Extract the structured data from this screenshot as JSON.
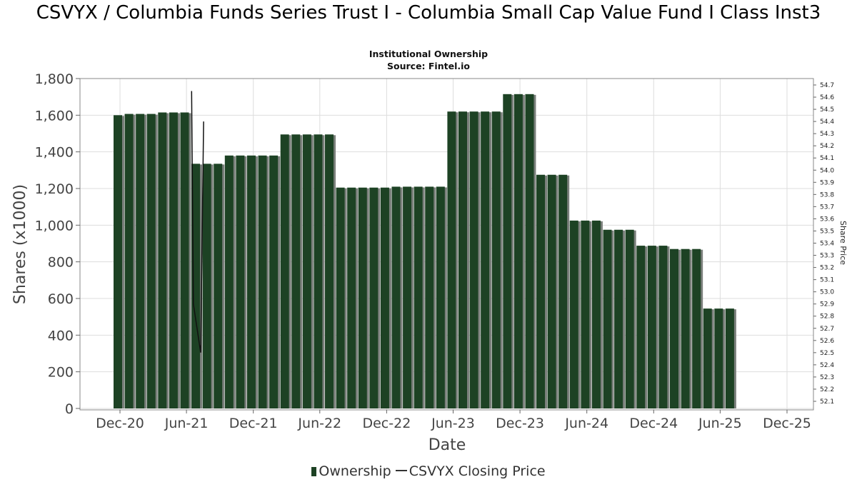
{
  "chart_data": {
    "type": "bar",
    "title": "CSVYX / Columbia Funds Series Trust I - Columbia Small Cap Value Fund I Class Inst3",
    "subtitle": "Institutional Ownership",
    "source": "Source: Fintel.io",
    "xlabel": "Date",
    "ylabel": "Shares (x1000)",
    "y2label": "Share Price",
    "ylim": [
      0,
      1800
    ],
    "y2lim": [
      52.05,
      54.75
    ],
    "yticks": [
      "0",
      "200",
      "400",
      "600",
      "800",
      "1,000",
      "1,200",
      "1,400",
      "1,600",
      "1,800"
    ],
    "y2ticks": [
      "52.1",
      "52.2",
      "52.3",
      "52.4",
      "52.5",
      "52.6",
      "52.7",
      "52.8",
      "52.9",
      "53.0",
      "53.1",
      "53.2",
      "53.3",
      "53.4",
      "53.5",
      "53.6",
      "53.7",
      "53.8",
      "53.9",
      "54.0",
      "54.1",
      "54.2",
      "54.3",
      "54.4",
      "54.5",
      "54.6",
      "54.7"
    ],
    "xticks": [
      "Dec-20",
      "Jun-21",
      "Dec-21",
      "Jun-22",
      "Dec-22",
      "Jun-23",
      "Dec-23",
      "Jun-24",
      "Dec-24",
      "Jun-25",
      "Dec-25"
    ],
    "grid": true,
    "legend_position": "bottom",
    "colors": {
      "bar": "#1d4224",
      "bar_shadow": "#7a7f7b",
      "price_line": "#111111"
    },
    "series": [
      {
        "name": "Ownership",
        "values": [
          1600,
          1607,
          1607,
          1607,
          1615,
          1615,
          1615,
          1335,
          1335,
          1335,
          1380,
          1380,
          1380,
          1380,
          1380,
          1495,
          1495,
          1495,
          1495,
          1495,
          1205,
          1205,
          1205,
          1205,
          1205,
          1210,
          1210,
          1210,
          1210,
          1210,
          1620,
          1620,
          1620,
          1620,
          1620,
          1715,
          1715,
          1715,
          1275,
          1275,
          1275,
          1025,
          1025,
          1025,
          975,
          975,
          975,
          888,
          888,
          888,
          870,
          870,
          870,
          545,
          545,
          545
        ]
      },
      {
        "name": "CSVYX Closing Price",
        "points": [
          {
            "x": "2021-06-15",
            "y": 54.65
          },
          {
            "x": "2021-06-20",
            "y": 52.9
          },
          {
            "x": "2021-07-10",
            "y": 52.5
          },
          {
            "x": "2021-07-18",
            "y": 54.4
          }
        ]
      }
    ]
  },
  "legend": {
    "ownership_label": "Ownership",
    "price_label": "CSVYX Closing Price"
  }
}
